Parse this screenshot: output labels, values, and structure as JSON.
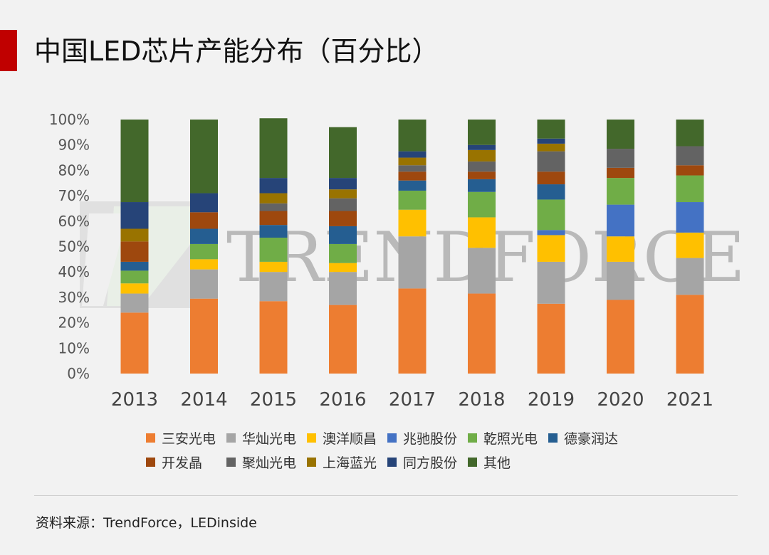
{
  "header": {
    "title": "中国LED芯片产能分布（百分比）",
    "accent_color": "#c00000"
  },
  "watermark": {
    "text": "TRENDFORCE",
    "logo_icon": "trendforce-logo-icon"
  },
  "source": {
    "text": "资料来源：TrendForce，LEDinside"
  },
  "chart_data": {
    "type": "bar",
    "stacked": true,
    "categories": [
      "2013",
      "2014",
      "2015",
      "2016",
      "2017",
      "2018",
      "2019",
      "2020",
      "2021"
    ],
    "y_ticks": [
      "0%",
      "10%",
      "20%",
      "30%",
      "40%",
      "50%",
      "60%",
      "70%",
      "80%",
      "90%",
      "100%"
    ],
    "ylim": [
      0,
      100
    ],
    "legend_position": "bottom",
    "series": [
      {
        "name": "三安光电",
        "color": "#ed7d31",
        "values": [
          24,
          29.5,
          28.5,
          27,
          33.5,
          31.5,
          27.5,
          29,
          31
        ]
      },
      {
        "name": "华灿光电",
        "color": "#a5a5a5",
        "values": [
          7.5,
          11.5,
          11.5,
          13,
          20.5,
          18,
          16.5,
          15,
          14.5
        ]
      },
      {
        "name": "澳洋顺昌",
        "color": "#ffc000",
        "values": [
          4,
          4,
          4,
          3.5,
          10.5,
          12,
          10.5,
          10,
          10
        ]
      },
      {
        "name": "兆驰股份",
        "color": "#4472c4",
        "values": [
          0,
          0,
          0,
          0,
          0,
          0,
          2,
          12.5,
          12
        ]
      },
      {
        "name": "乾照光电",
        "color": "#70ad47",
        "values": [
          5,
          6,
          9.5,
          7.5,
          7.5,
          10,
          12,
          10.5,
          10.5
        ]
      },
      {
        "name": "德豪润达",
        "color": "#255e91",
        "values": [
          3.5,
          6,
          5,
          7,
          4,
          5,
          6,
          0,
          0
        ]
      },
      {
        "name": "开发晶",
        "color": "#9e480e",
        "values": [
          8,
          6.5,
          5.5,
          6,
          3.5,
          3,
          5,
          4,
          4
        ]
      },
      {
        "name": "聚灿光电",
        "color": "#636363",
        "values": [
          0,
          0,
          3,
          5,
          2.5,
          4,
          8,
          7.5,
          7.5
        ]
      },
      {
        "name": "上海蓝光",
        "color": "#997300",
        "values": [
          5,
          0,
          4,
          3.5,
          3,
          4.5,
          3,
          0,
          0
        ]
      },
      {
        "name": "同方股份",
        "color": "#264478",
        "values": [
          10.5,
          7.5,
          6,
          4.5,
          2.5,
          2,
          2,
          0,
          0
        ]
      },
      {
        "name": "其他",
        "color": "#43682b",
        "values": [
          32.5,
          29,
          23.5,
          20,
          12.5,
          10,
          7.5,
          11.5,
          10.5
        ]
      }
    ]
  }
}
